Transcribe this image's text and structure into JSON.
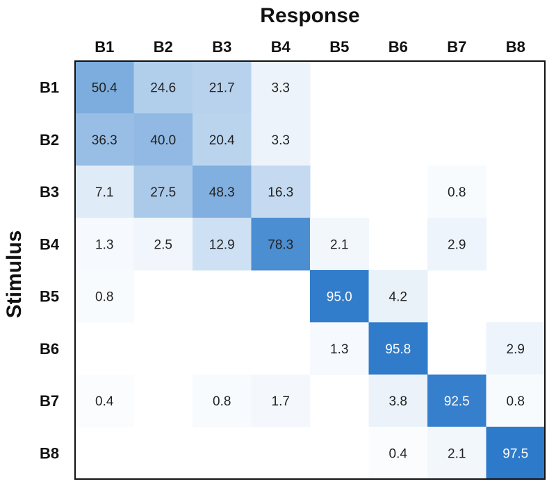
{
  "chart_data": {
    "type": "heatmap",
    "xlabel": "Response",
    "ylabel": "Stimulus",
    "x_categories": [
      "B1",
      "B2",
      "B3",
      "B4",
      "B5",
      "B6",
      "B7",
      "B8"
    ],
    "y_categories": [
      "B1",
      "B2",
      "B3",
      "B4",
      "B5",
      "B6",
      "B7",
      "B8"
    ],
    "values": [
      [
        50.4,
        24.6,
        21.7,
        3.3,
        null,
        null,
        null,
        null
      ],
      [
        36.3,
        40.0,
        20.4,
        3.3,
        null,
        null,
        null,
        null
      ],
      [
        7.1,
        27.5,
        48.3,
        16.3,
        null,
        null,
        0.8,
        null
      ],
      [
        1.3,
        2.5,
        12.9,
        78.3,
        2.1,
        null,
        2.9,
        null
      ],
      [
        0.8,
        null,
        null,
        null,
        95.0,
        4.2,
        null,
        null
      ],
      [
        null,
        null,
        null,
        null,
        1.3,
        95.8,
        null,
        2.9
      ],
      [
        0.4,
        null,
        0.8,
        1.7,
        null,
        3.8,
        92.5,
        0.8
      ],
      [
        null,
        null,
        null,
        null,
        null,
        0.4,
        2.1,
        97.5
      ]
    ],
    "value_range": [
      0,
      100
    ],
    "colormap": "blues",
    "color_low": "#ffffff",
    "color_high": "#2a78c9",
    "grid": false,
    "legend": "none"
  }
}
